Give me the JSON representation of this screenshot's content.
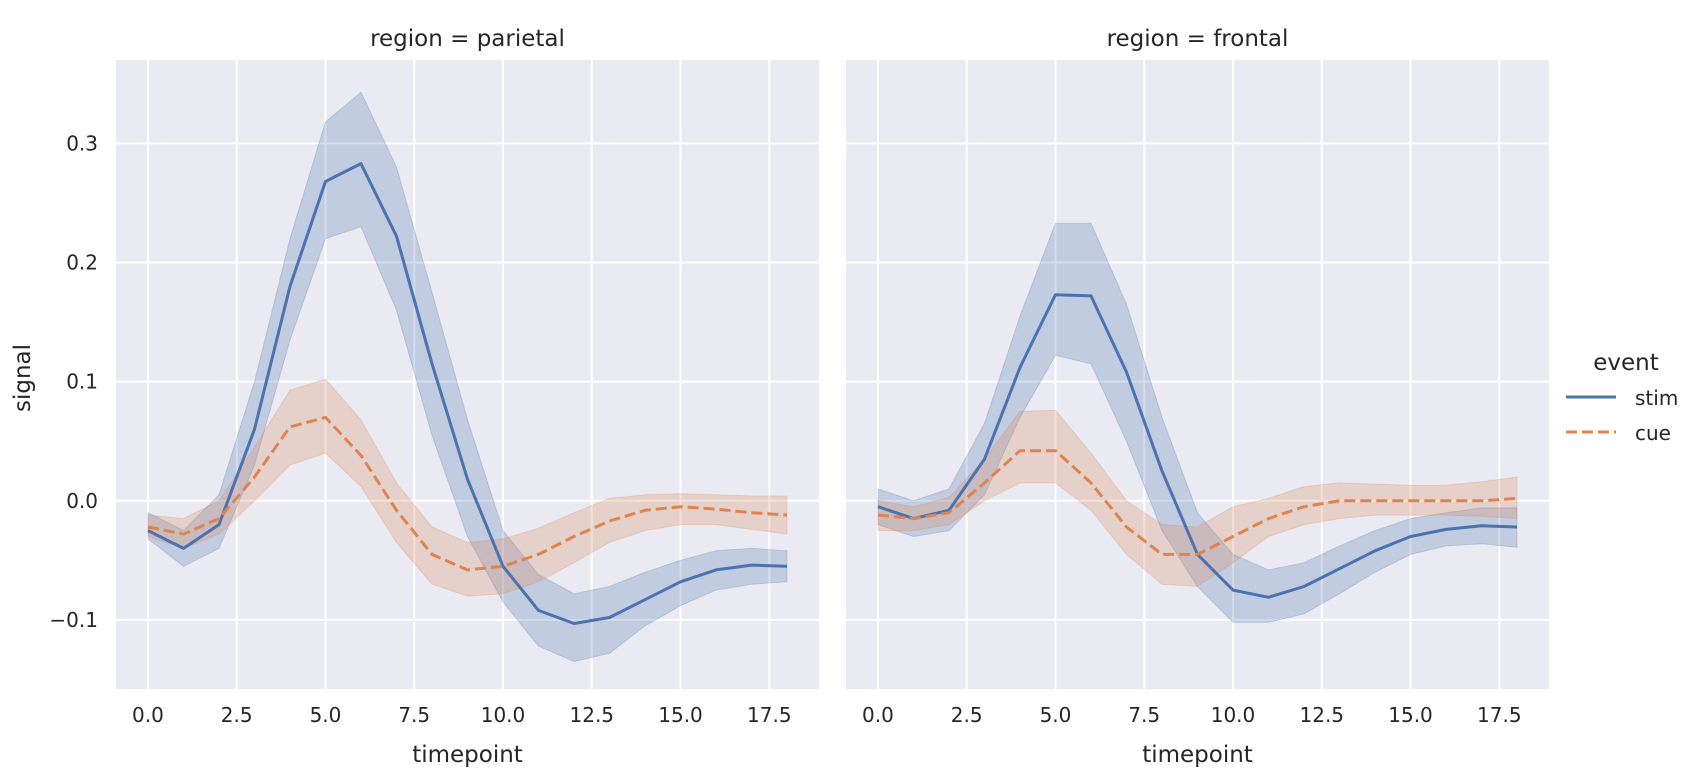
{
  "chart_data": {
    "type": "line",
    "facet_variable": "region",
    "hue_variable": "event",
    "xlabel": "timepoint",
    "ylabel": "signal",
    "xlim": [
      -0.9,
      18.9
    ],
    "ylim": [
      -0.158,
      0.37
    ],
    "x_ticks": [
      0.0,
      2.5,
      5.0,
      7.5,
      10.0,
      12.5,
      15.0,
      17.5
    ],
    "x_tick_labels": [
      "0.0",
      "2.5",
      "5.0",
      "7.5",
      "10.0",
      "12.5",
      "15.0",
      "17.5"
    ],
    "y_ticks": [
      -0.1,
      0.0,
      0.1,
      0.2,
      0.3
    ],
    "y_tick_labels": [
      "−0.1",
      "0.0",
      "0.1",
      "0.2",
      "0.3"
    ],
    "grid": true,
    "legend": {
      "title": "event",
      "placement": "right",
      "entries": [
        {
          "name": "stim",
          "style": "solid",
          "color": "#4c72b0"
        },
        {
          "name": "cue",
          "style": "dashed",
          "color": "#dd8452"
        }
      ]
    },
    "colors": {
      "stim": "#4c72b0",
      "cue": "#dd8452",
      "panel_bg": "#eaeaf2",
      "grid": "#ffffff"
    },
    "x": [
      0,
      1,
      2,
      3,
      4,
      5,
      6,
      7,
      8,
      9,
      10,
      11,
      12,
      13,
      14,
      15,
      16,
      17,
      18
    ],
    "panels": [
      {
        "title": "region = parietal",
        "series": [
          {
            "name": "stim",
            "values": [
              -0.025,
              -0.04,
              -0.02,
              0.06,
              0.18,
              0.268,
              0.283,
              0.222,
              0.115,
              0.018,
              -0.055,
              -0.092,
              -0.103,
              -0.098,
              -0.083,
              -0.068,
              -0.058,
              -0.054,
              -0.055
            ],
            "ci_low": [
              -0.032,
              -0.055,
              -0.04,
              0.03,
              0.135,
              0.22,
              0.23,
              0.16,
              0.055,
              -0.03,
              -0.085,
              -0.122,
              -0.135,
              -0.128,
              -0.105,
              -0.088,
              -0.075,
              -0.07,
              -0.068
            ],
            "ci_high": [
              -0.01,
              -0.025,
              0.005,
              0.1,
              0.22,
              0.318,
              0.343,
              0.28,
              0.175,
              0.068,
              -0.025,
              -0.062,
              -0.078,
              -0.072,
              -0.06,
              -0.05,
              -0.042,
              -0.04,
              -0.042
            ]
          },
          {
            "name": "cue",
            "values": [
              -0.022,
              -0.028,
              -0.015,
              0.02,
              0.062,
              0.07,
              0.038,
              -0.008,
              -0.045,
              -0.058,
              -0.055,
              -0.045,
              -0.03,
              -0.017,
              -0.008,
              -0.005,
              -0.007,
              -0.01,
              -0.012
            ],
            "ci_low": [
              -0.03,
              -0.04,
              -0.028,
              0.0,
              0.03,
              0.04,
              0.012,
              -0.035,
              -0.07,
              -0.08,
              -0.078,
              -0.068,
              -0.052,
              -0.035,
              -0.025,
              -0.02,
              -0.02,
              -0.024,
              -0.028
            ],
            "ci_high": [
              -0.012,
              -0.015,
              0.0,
              0.045,
              0.093,
              0.102,
              0.068,
              0.015,
              -0.022,
              -0.035,
              -0.032,
              -0.023,
              -0.01,
              0.002,
              0.005,
              0.006,
              0.005,
              0.004,
              0.004
            ]
          }
        ]
      },
      {
        "title": "region = frontal",
        "series": [
          {
            "name": "stim",
            "values": [
              -0.005,
              -0.015,
              -0.008,
              0.035,
              0.112,
              0.173,
              0.172,
              0.108,
              0.025,
              -0.045,
              -0.075,
              -0.081,
              -0.072,
              -0.057,
              -0.042,
              -0.03,
              -0.024,
              -0.021,
              -0.022
            ],
            "ci_low": [
              -0.02,
              -0.03,
              -0.025,
              0.005,
              0.07,
              0.122,
              0.115,
              0.05,
              -0.025,
              -0.072,
              -0.102,
              -0.102,
              -0.095,
              -0.078,
              -0.06,
              -0.045,
              -0.038,
              -0.036,
              -0.039
            ],
            "ci_high": [
              0.01,
              0.0,
              0.01,
              0.065,
              0.155,
              0.233,
              0.233,
              0.165,
              0.07,
              -0.01,
              -0.045,
              -0.058,
              -0.052,
              -0.038,
              -0.025,
              -0.015,
              -0.01,
              -0.006,
              -0.006
            ]
          },
          {
            "name": "cue",
            "values": [
              -0.012,
              -0.015,
              -0.01,
              0.015,
              0.042,
              0.042,
              0.015,
              -0.022,
              -0.045,
              -0.045,
              -0.03,
              -0.015,
              -0.005,
              0.0,
              0.0,
              0.0,
              0.0,
              0.0,
              0.002
            ],
            "ci_low": [
              -0.025,
              -0.025,
              -0.02,
              0.0,
              0.015,
              0.015,
              -0.008,
              -0.045,
              -0.07,
              -0.072,
              -0.052,
              -0.03,
              -0.02,
              -0.015,
              -0.012,
              -0.012,
              -0.012,
              -0.013,
              -0.015
            ],
            "ci_high": [
              0.0,
              -0.005,
              0.003,
              0.035,
              0.075,
              0.076,
              0.04,
              0.0,
              -0.02,
              -0.022,
              -0.005,
              0.002,
              0.012,
              0.015,
              0.014,
              0.013,
              0.013,
              0.016,
              0.02
            ]
          }
        ]
      }
    ]
  }
}
